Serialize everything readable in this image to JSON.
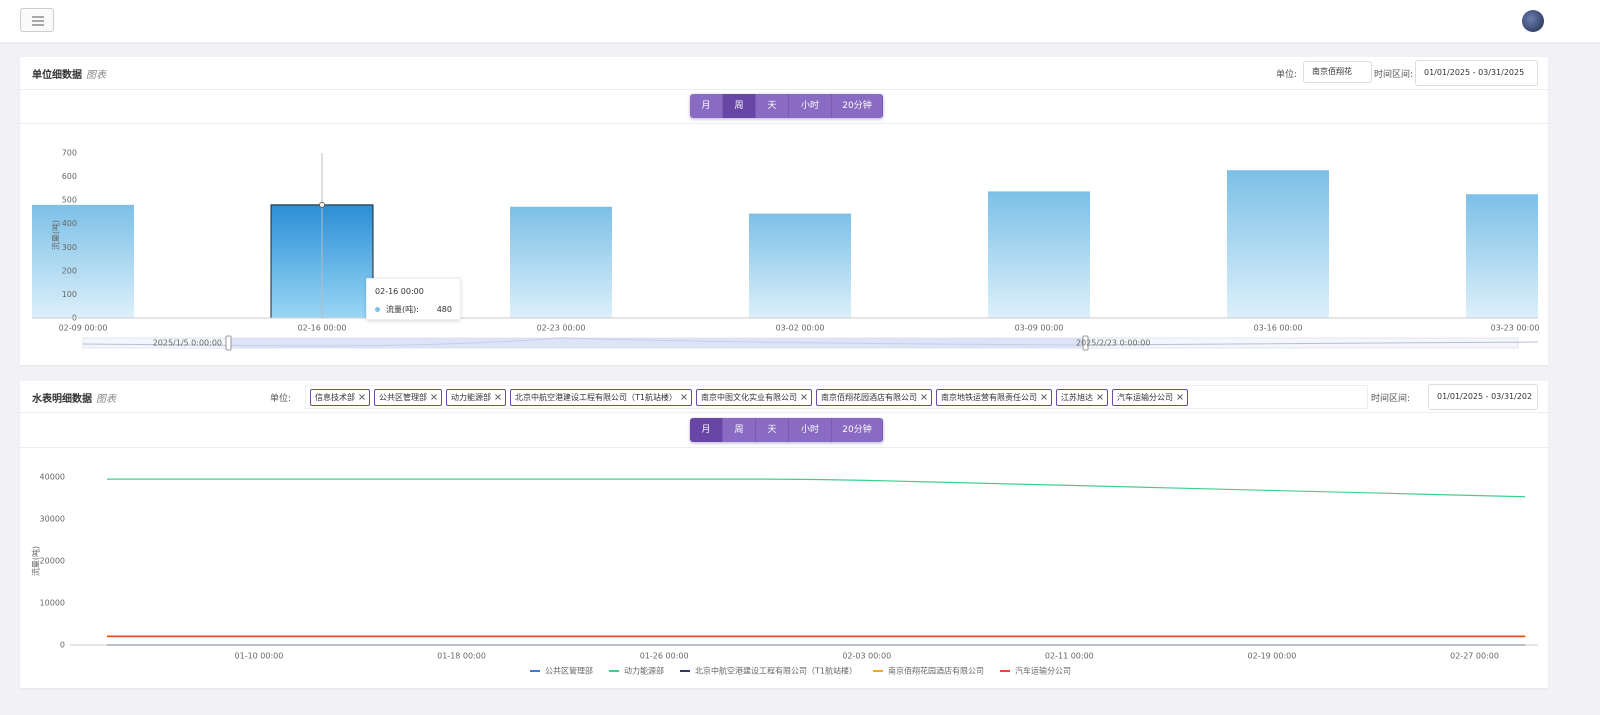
{
  "panel1": {
    "title": "单位细数据",
    "subtitle": "图表",
    "unit_label": "单位:",
    "unit_value": "南京佰翔花",
    "time_label": "时间区间:",
    "time_range": "01/01/2025 - 03/31/2025",
    "granularity": [
      "月",
      "周",
      "天",
      "小时",
      "20分钟"
    ],
    "active": 1
  },
  "panel2": {
    "title": "水表明细数据",
    "subtitle": "图表",
    "unit_label": "单位:",
    "tags": [
      "信息技术部",
      "公共区管理部",
      "动力能源部",
      "北京中航空港建设工程有限公司（T1航站楼）",
      "南京中图文化实业有限公司",
      "南京佰翔花园酒店有限公司",
      "南京地铁运营有限责任公司",
      "江苏旭达",
      "汽车运输分公司"
    ],
    "time_label": "时间区间:",
    "time_range": "01/01/2025 - 03/31/202",
    "granularity": [
      "月",
      "周",
      "天",
      "小时",
      "20分钟"
    ],
    "active": 0
  },
  "chart_data": [
    {
      "type": "bar",
      "y_label": "流量(吨)",
      "categories": [
        "02-09 00:00",
        "02-16 00:00",
        "02-23 00:00",
        "03-02 00:00",
        "03-09 00:00",
        "03-16 00:00",
        "03-23 00:00"
      ],
      "values": [
        480,
        480,
        472,
        443,
        537,
        627,
        525
      ],
      "color": "#7cc0e7",
      "highlight": 1,
      "ylim": [
        0,
        700
      ],
      "yticks": [
        0,
        100,
        200,
        300,
        400,
        500,
        600,
        700
      ],
      "grid": false,
      "tooltip": {
        "label": "流量(吨):"
      },
      "datazoom": {
        "start": "2025/1/5 0:00:00",
        "end": "2025/2/23 0:00:00"
      }
    },
    {
      "type": "line",
      "y_label": "流量(吨)",
      "categories": [
        null,
        null,
        null,
        "01-10 00:00",
        null,
        null,
        null,
        "01-18 00:00",
        null,
        null,
        null,
        "01-26 00:00",
        null,
        null,
        null,
        "02-03 00:00",
        null,
        null,
        null,
        "02-11 00:00",
        null,
        null,
        null,
        "02-19 00:00",
        null,
        null,
        null,
        "02-27 00:00",
        null
      ],
      "series": [
        {
          "name": "公共区管理部",
          "color": "#3b7ddd",
          "values": [
            0,
            0,
            0,
            0,
            0,
            0,
            0,
            0,
            0,
            0,
            0,
            0,
            0,
            0,
            0,
            0,
            0,
            0,
            0,
            0,
            0,
            0,
            0,
            0,
            0,
            0,
            0,
            0,
            0
          ]
        },
        {
          "name": "动力能源部",
          "color": "#3ecf8e",
          "values": [
            39500,
            39500,
            39500,
            39500,
            39500,
            39500,
            39500,
            39500,
            39500,
            39500,
            39500,
            39500,
            39500,
            39500,
            39400,
            39200,
            38900,
            38600,
            38300,
            38000,
            37700,
            37400,
            37100,
            36800,
            36500,
            36200,
            35900,
            35600,
            35300
          ]
        },
        {
          "name": "北京中航空港建设工程有限公司（T1航站楼）",
          "color": "#34395e",
          "values": [
            0,
            0,
            0,
            0,
            0,
            0,
            0,
            0,
            0,
            0,
            0,
            0,
            0,
            0,
            0,
            0,
            0,
            0,
            0,
            0,
            0,
            0,
            0,
            0,
            0,
            0,
            0,
            0,
            0
          ]
        },
        {
          "name": "南京佰翔花园酒店有限公司",
          "color": "#f5a623",
          "values": [
            2200,
            2200,
            2200,
            2200,
            2200,
            2200,
            2200,
            2200,
            2200,
            2200,
            2200,
            2200,
            2200,
            2200,
            2200,
            2200,
            2200,
            2200,
            2200,
            2200,
            2200,
            2200,
            2200,
            2200,
            2200,
            2200,
            2200,
            2200,
            2200
          ]
        },
        {
          "name": "汽车运输分公司",
          "color": "#e8473b",
          "values": [
            2000,
            2000,
            2000,
            2000,
            2000,
            2000,
            2000,
            2000,
            2000,
            2000,
            2000,
            2000,
            2000,
            2000,
            2000,
            2000,
            2000,
            2000,
            2000,
            2000,
            2000,
            2000,
            2000,
            2000,
            2000,
            2000,
            2000,
            2000,
            2000
          ]
        }
      ],
      "ylim": [
        0,
        40000
      ],
      "yticks": [
        0,
        10000,
        20000,
        30000,
        40000
      ],
      "grid": false
    }
  ]
}
